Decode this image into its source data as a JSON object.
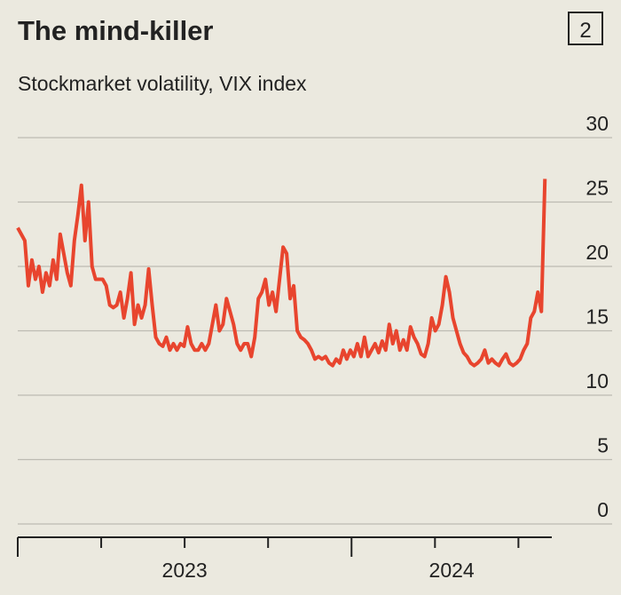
{
  "chart_data": {
    "type": "line",
    "title": "The mind-killer",
    "badge": "2",
    "subtitle": "Stockmarket volatility, VIX index",
    "xlim": [
      2023,
      2024.6
    ],
    "xticks": [
      {
        "value": 2023.5,
        "label": "2023"
      },
      {
        "value": 2024.3,
        "label": "2024"
      }
    ],
    "ylim": [
      0,
      30
    ],
    "yticks": [
      0,
      5,
      10,
      15,
      20,
      25,
      30
    ],
    "grid": true,
    "x": [
      2023,
      2023.0106,
      2023.0212,
      2023.0318,
      2023.0424,
      2023.053,
      2023.0636,
      2023.0742,
      2023.0848,
      2023.0954,
      2023.106,
      2023.1166,
      2023.1272,
      2023.1378,
      2023.1484,
      2023.159,
      2023.1696,
      2023.1802,
      2023.1908,
      2023.2014,
      2023.212,
      2023.2226,
      2023.2332,
      2023.2438,
      2023.2544,
      2023.265,
      2023.2756,
      2023.2862,
      2023.2968,
      2023.3074,
      2023.318,
      2023.3286,
      2023.3392,
      2023.3498,
      2023.3604,
      2023.371,
      2023.3816,
      2023.3922,
      2023.4028,
      2023.4134,
      2023.424,
      2023.4346,
      2023.4452,
      2023.4558,
      2023.4664,
      2023.477,
      2023.4876,
      2023.4982,
      2023.5088,
      2023.5194,
      2023.53,
      2023.5406,
      2023.5512,
      2023.5618,
      2023.5724,
      2023.583,
      2023.5936,
      2023.6042,
      2023.6148,
      2023.6254,
      2023.636,
      2023.6466,
      2023.6572,
      2023.6678,
      2023.6784,
      2023.689,
      2023.6996,
      2023.7102,
      2023.7208,
      2023.7314,
      2023.742,
      2023.7526,
      2023.7632,
      2023.7738,
      2023.7844,
      2023.795,
      2023.8056,
      2023.8162,
      2023.8268,
      2023.8374,
      2023.848,
      2023.8586,
      2023.8692,
      2023.8798,
      2023.8904,
      2023.901,
      2023.9116,
      2023.9222,
      2023.9328,
      2023.9434,
      2023.954,
      2023.9646,
      2023.9752,
      2023.9858,
      2023.9964,
      2024.007,
      2024.0176,
      2024.0282,
      2024.0388,
      2024.0494,
      2024.06,
      2024.0706,
      2024.0812,
      2024.0918,
      2024.1024,
      2024.113,
      2024.1236,
      2024.1342,
      2024.1448,
      2024.1554,
      2024.166,
      2024.1766,
      2024.1872,
      2024.1978,
      2024.2084,
      2024.219,
      2024.2296,
      2024.2402,
      2024.2508,
      2024.2614,
      2024.272,
      2024.2826,
      2024.2932,
      2024.3038,
      2024.3144,
      2024.325,
      2024.3356,
      2024.3462,
      2024.3568,
      2024.3674,
      2024.378,
      2024.3886,
      2024.3992,
      2024.4098,
      2024.4204,
      2024.431,
      2024.4416,
      2024.4522,
      2024.4628,
      2024.4734,
      2024.484,
      2024.4946,
      2024.5052,
      2024.5158,
      2024.5264,
      2024.537,
      2024.5476,
      2024.5582,
      2024.5688,
      2024.5794
    ],
    "series": [
      {
        "color": "#e8452e",
        "values": [
          23,
          22.5,
          22,
          18.5,
          20.5,
          19,
          20,
          18,
          19.5,
          18.5,
          20.5,
          19,
          22.5,
          21,
          19.5,
          18.5,
          22,
          24,
          26.3,
          22,
          25,
          20,
          19,
          19,
          19,
          18.5,
          17,
          16.8,
          17,
          18,
          16,
          17.5,
          19.5,
          15.5,
          17,
          16,
          17,
          19.8,
          17,
          14.5,
          14,
          13.8,
          14.5,
          13.5,
          14,
          13.5,
          14,
          13.8,
          15.3,
          14,
          13.5,
          13.5,
          14,
          13.5,
          14,
          15.5,
          17,
          15,
          15.5,
          17.5,
          16.5,
          15.5,
          14,
          13.5,
          14,
          14,
          13,
          14.5,
          17.5,
          18,
          19,
          17,
          18,
          16.5,
          19,
          21.5,
          21,
          17.5,
          18.5,
          15,
          14.5,
          14.3,
          14,
          13.5,
          12.8,
          13,
          12.8,
          13,
          12.5,
          12.3,
          12.8,
          12.5,
          13.5,
          12.8,
          13.5,
          13,
          14,
          13,
          14.5,
          13,
          13.5,
          14,
          13.3,
          14.2,
          13.5,
          15.5,
          14,
          15,
          13.5,
          14.3,
          13.5,
          15.3,
          14.5,
          14,
          13.2,
          13,
          14,
          16,
          15,
          15.5,
          17,
          19.2,
          18,
          16,
          15,
          14,
          13.3,
          13,
          12.5,
          12.3,
          12.5,
          12.8,
          13.5,
          12.5,
          12.8,
          12.5,
          12.3,
          12.8,
          13.2,
          12.5,
          12.3,
          12.5,
          12.8,
          13.5,
          14,
          16,
          16.5,
          18,
          16.5,
          26.8
        ]
      }
    ]
  }
}
